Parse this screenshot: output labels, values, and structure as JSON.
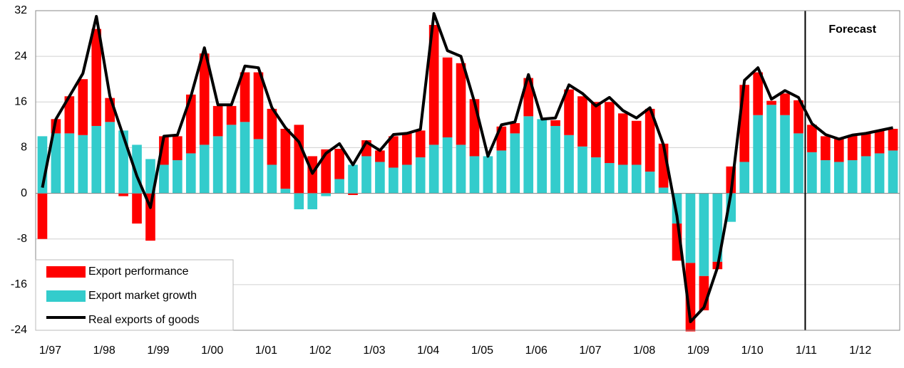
{
  "chart_data": {
    "type": "bar-line",
    "categories": [
      "1/97",
      null,
      null,
      null,
      "1/98",
      null,
      null,
      null,
      "1/99",
      null,
      null,
      null,
      "1/00",
      null,
      null,
      null,
      "1/01",
      null,
      null,
      null,
      "1/02",
      null,
      null,
      null,
      "1/03",
      null,
      null,
      null,
      "1/04",
      null,
      null,
      null,
      "1/05",
      null,
      null,
      null,
      "1/06",
      null,
      null,
      null,
      "1/07",
      null,
      null,
      null,
      "1/08",
      null,
      null,
      null,
      "1/09",
      null,
      null,
      null,
      "1/10",
      null,
      null,
      null,
      "1/11",
      null,
      null,
      null,
      "1/12",
      null,
      null,
      null
    ],
    "series": [
      {
        "name": "Export performance",
        "color": "#ff0000",
        "kind": "bar",
        "values": [
          -8,
          2.5,
          6.5,
          9.8,
          17,
          4.2,
          -0.5,
          -5.3,
          -8.3,
          5,
          4.2,
          10.3,
          16,
          5.3,
          3.3,
          8.7,
          11.7,
          9.8,
          10.5,
          12,
          6.5,
          7.7,
          5.3,
          -0.3,
          2.8,
          2,
          5.5,
          5.5,
          4.7,
          21,
          14,
          14.3,
          10,
          0,
          4.2,
          1.8,
          6.7,
          0,
          1,
          8,
          8.8,
          9.7,
          10.7,
          9,
          7.7,
          11,
          7.7,
          -6.5,
          -12,
          -6,
          -1.3,
          4.7,
          13.5,
          7.5,
          0.7,
          3.8,
          5.8,
          4.8,
          4.2,
          4,
          4.3,
          4,
          4,
          3.8
        ]
      },
      {
        "name": "Export market growth",
        "color": "#33cccc",
        "kind": "bar",
        "values": [
          10,
          10.5,
          10.5,
          10.2,
          11.8,
          12.5,
          11,
          8.5,
          6,
          5,
          5.8,
          7,
          8.5,
          10,
          12,
          12.5,
          9.5,
          5,
          0.8,
          -2.8,
          -2.8,
          -0.5,
          2.5,
          5,
          6.5,
          5.5,
          4.5,
          5,
          6.3,
          8.5,
          9.8,
          8.5,
          6.5,
          6.5,
          7.5,
          10.5,
          13.5,
          13,
          11.8,
          10.2,
          8.2,
          6.3,
          5.3,
          5,
          5,
          3.8,
          1,
          -5.3,
          -12.2,
          -14.5,
          -12,
          -5,
          5.5,
          13.7,
          15.5,
          13.7,
          10.5,
          7.2,
          5.8,
          5.5,
          5.8,
          6.5,
          7,
          7.5
        ]
      },
      {
        "name": "Real exports of goods",
        "color": "#000000",
        "kind": "line",
        "values": [
          1,
          13,
          17,
          21,
          31,
          17,
          10,
          3,
          -2.5,
          10,
          10.2,
          17,
          25.5,
          15.5,
          15.5,
          22.3,
          22,
          15,
          11.5,
          9,
          3.5,
          7,
          8.7,
          5,
          9,
          7.5,
          10.3,
          10.5,
          11.2,
          31.5,
          25,
          24,
          16,
          6.5,
          12,
          12.5,
          20.8,
          13,
          13.2,
          19,
          17.5,
          15.3,
          16.8,
          14.5,
          13.2,
          15,
          8.5,
          -4,
          -22.5,
          -20,
          -13,
          0,
          19.8,
          22,
          16.5,
          18,
          16.8,
          12.2,
          10.3,
          9.5,
          10.2,
          10.5,
          11,
          11.5
        ]
      }
    ],
    "ylim": [
      -24,
      32
    ],
    "yticks": [
      -24,
      -16,
      -8,
      0,
      8,
      16,
      24,
      32
    ],
    "grid": true,
    "legend": "bottom-left",
    "annotations": [
      {
        "text": "Forecast",
        "category_index": 57
      }
    ]
  }
}
